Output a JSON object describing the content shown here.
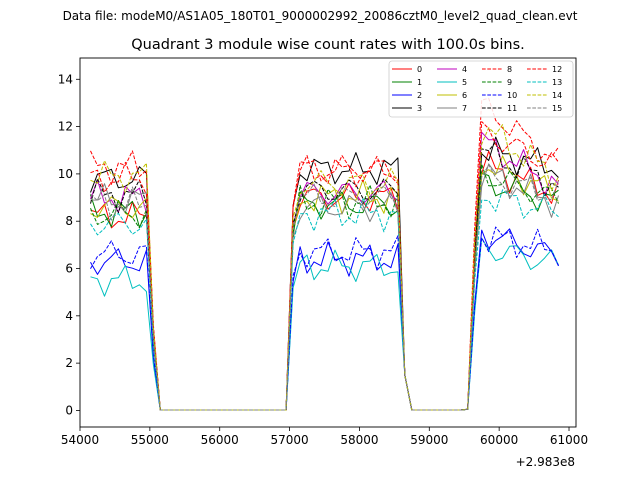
{
  "suptitle": "Data file: modeM0/AS1A05_180T01_9000002992_20086cztM0_level2_quad_clean.evt",
  "chart_data": {
    "type": "line",
    "title": "Quadrant 3 module wise count rates with 100.0s bins.",
    "xlabel": "",
    "ylabel": "",
    "x_offset_label": "+2.983e8",
    "xlim": [
      54000,
      61100
    ],
    "ylim": [
      -0.7,
      14.9
    ],
    "xticks": [
      54000,
      55000,
      56000,
      57000,
      58000,
      59000,
      60000,
      61000
    ],
    "yticks": [
      0,
      2,
      4,
      6,
      8,
      10,
      12,
      14
    ],
    "legend_position": "top-right",
    "segments": [
      {
        "start": 54150,
        "step": 100,
        "count": 10
      },
      {
        "start": 55150,
        "step": 100,
        "count": 19
      },
      {
        "start": 57050,
        "step": 100,
        "count": 16
      },
      {
        "start": 58650,
        "step": 100,
        "count": 9
      },
      {
        "start": 59550,
        "step": 100,
        "count": 14
      }
    ],
    "series": [
      {
        "name": "0",
        "color": "#ff0000",
        "dash": "solid",
        "levels": [
          8.2,
          9.0,
          10.4
        ]
      },
      {
        "name": "1",
        "color": "#008000",
        "dash": "solid",
        "levels": [
          8.4,
          8.7,
          9.7
        ]
      },
      {
        "name": "2",
        "color": "#0000ff",
        "dash": "solid",
        "levels": [
          6.3,
          6.4,
          7.5
        ]
      },
      {
        "name": "3",
        "color": "#000000",
        "dash": "solid",
        "levels": [
          9.8,
          10.2,
          11.0
        ]
      },
      {
        "name": "4",
        "color": "#bf00bf",
        "dash": "solid",
        "levels": [
          9.0,
          9.2,
          11.4
        ]
      },
      {
        "name": "5",
        "color": "#00bfbf",
        "dash": "solid",
        "levels": [
          5.5,
          6.1,
          6.9
        ]
      },
      {
        "name": "6",
        "color": "#bfbf00",
        "dash": "solid",
        "levels": [
          8.6,
          9.0,
          10.5
        ]
      },
      {
        "name": "7",
        "color": "#808080",
        "dash": "solid",
        "levels": [
          8.9,
          8.6,
          10.1
        ]
      },
      {
        "name": "8",
        "color": "#ff0000",
        "dash": "dashed",
        "levels": [
          10.3,
          10.2,
          12.9
        ]
      },
      {
        "name": "9",
        "color": "#008000",
        "dash": "dashed",
        "levels": [
          8.3,
          8.8,
          10.0
        ]
      },
      {
        "name": "10",
        "color": "#0000ff",
        "dash": "dashed",
        "levels": [
          6.6,
          6.7,
          7.4
        ]
      },
      {
        "name": "11",
        "color": "#000000",
        "dash": "dashed",
        "levels": [
          9.1,
          9.3,
          11.0
        ]
      },
      {
        "name": "12",
        "color": "#ff0000",
        "dash": "dashed",
        "levels": [
          9.8,
          10.1,
          11.8
        ]
      },
      {
        "name": "13",
        "color": "#00bfbf",
        "dash": "dashed",
        "levels": [
          7.9,
          8.3,
          9.1
        ]
      },
      {
        "name": "14",
        "color": "#bfbf00",
        "dash": "dashed",
        "levels": [
          9.9,
          9.6,
          12.0
        ]
      },
      {
        "name": "15",
        "color": "#808080",
        "dash": "dashed",
        "levels": [
          8.7,
          9.0,
          9.9
        ]
      }
    ]
  }
}
